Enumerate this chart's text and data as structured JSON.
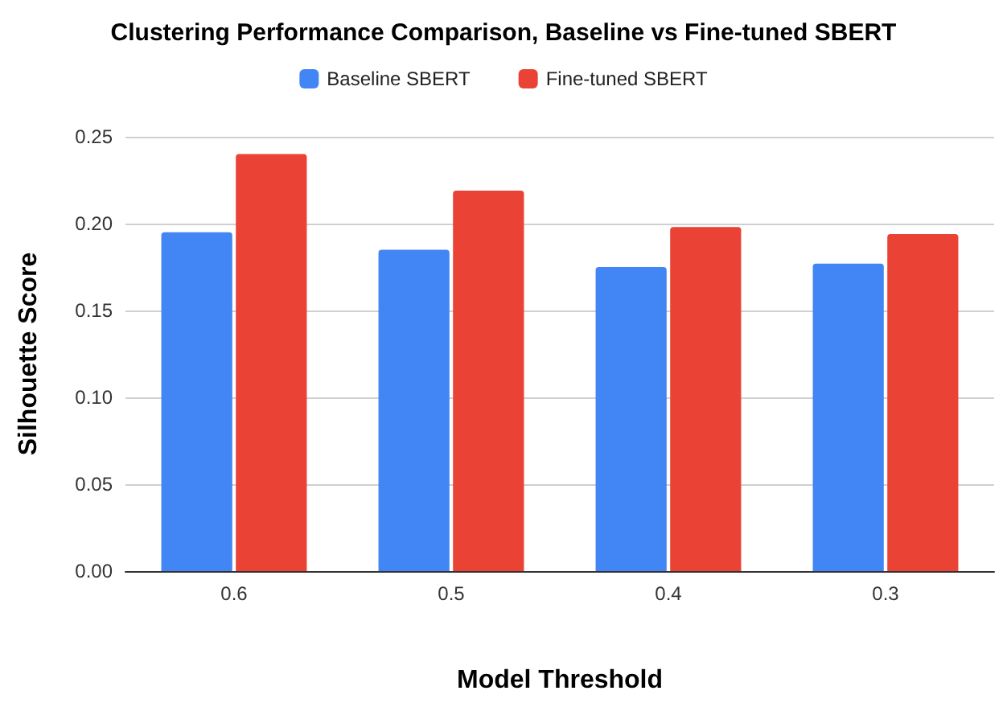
{
  "chart_data": {
    "type": "bar",
    "title": "Clustering Performance Comparison, Baseline vs Fine-tuned SBERT",
    "xlabel": "Model Threshold",
    "ylabel": "Silhouette Score",
    "categories": [
      "0.6",
      "0.5",
      "0.4",
      "0.3"
    ],
    "series": [
      {
        "name": "Baseline SBERT",
        "color": "#4285f4",
        "values": [
          0.195,
          0.185,
          0.175,
          0.177
        ]
      },
      {
        "name": "Fine-tuned SBERT",
        "color": "#ea4335",
        "values": [
          0.24,
          0.219,
          0.198,
          0.194
        ]
      }
    ],
    "ylim": [
      0,
      0.25
    ],
    "yticks": [
      {
        "value": 0,
        "label": "0.00"
      },
      {
        "value": 0.05,
        "label": "0.05"
      },
      {
        "value": 0.1,
        "label": "0.10"
      },
      {
        "value": 0.15,
        "label": "0.15"
      },
      {
        "value": 0.2,
        "label": "0.20"
      },
      {
        "value": 0.25,
        "label": "0.25"
      }
    ],
    "grid": "y",
    "legend": "top"
  }
}
